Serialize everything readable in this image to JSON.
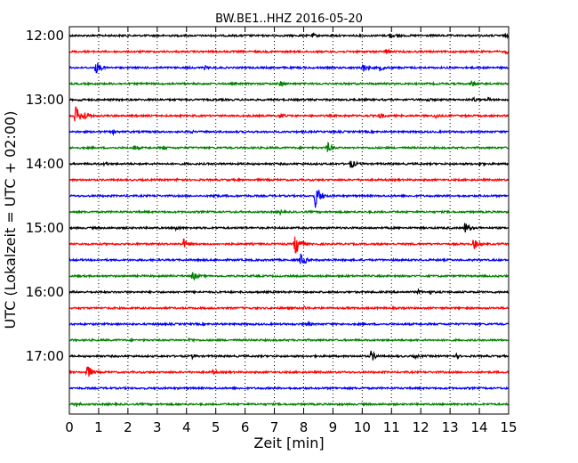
{
  "chart_data": {
    "type": "line",
    "title": "BW.BE1..HHZ 2016-05-20",
    "xlabel": "Zeit  [min]",
    "ylabel": "UTC (Lokalzeit = UTC + 02:00)",
    "xlim": [
      0,
      15
    ],
    "x_ticks": [
      "0",
      "1",
      "2",
      "3",
      "4",
      "5",
      "6",
      "7",
      "8",
      "9",
      "10",
      "11",
      "12",
      "13",
      "14",
      "15"
    ],
    "y_tick_labels": [
      "12:00",
      "13:00",
      "14:00",
      "15:00",
      "16:00",
      "17:00"
    ],
    "grid": "vertical dotted",
    "trace_interval_min": 15,
    "trace_colors": [
      "#000000",
      "#ff0000",
      "#0000ff",
      "#008000"
    ],
    "traces": [
      {
        "start": "12:00",
        "events": [
          [
            8.3,
            3
          ],
          [
            10.9,
            4
          ],
          [
            11.2,
            3
          ],
          [
            14.9,
            3
          ]
        ]
      },
      {
        "start": "12:15",
        "events": [
          [
            10.8,
            4
          ],
          [
            14.9,
            3
          ]
        ]
      },
      {
        "start": "12:30",
        "events": [
          [
            0.9,
            8
          ],
          [
            4.6,
            3
          ],
          [
            10.0,
            6
          ],
          [
            10.6,
            4
          ]
        ]
      },
      {
        "start": "12:45",
        "events": [
          [
            7.2,
            4
          ],
          [
            13.7,
            5
          ]
        ]
      },
      {
        "start": "13:00",
        "events": [
          [
            0.3,
            3
          ],
          [
            12.2,
            3
          ],
          [
            13.8,
            3
          ],
          [
            14.3,
            3
          ]
        ]
      },
      {
        "start": "13:15",
        "events": [
          [
            0.2,
            12
          ],
          [
            0.5,
            6
          ],
          [
            7.2,
            4
          ],
          [
            10.6,
            4
          ],
          [
            12.5,
            4
          ]
        ]
      },
      {
        "start": "13:30",
        "events": [
          [
            1.5,
            3
          ],
          [
            4.1,
            3
          ]
        ]
      },
      {
        "start": "13:45",
        "events": [
          [
            2.2,
            4
          ],
          [
            3.2,
            3
          ],
          [
            8.8,
            7
          ]
        ]
      },
      {
        "start": "14:00",
        "events": [
          [
            1.2,
            3
          ],
          [
            9.6,
            6
          ],
          [
            14.0,
            3
          ]
        ]
      },
      {
        "start": "14:15",
        "events": [
          [
            3.7,
            3
          ]
        ]
      },
      {
        "start": "14:30",
        "events": [
          [
            8.4,
            14
          ],
          [
            4.9,
            3
          ]
        ]
      },
      {
        "start": "14:45",
        "events": [
          [
            7.2,
            3
          ]
        ]
      },
      {
        "start": "15:00",
        "events": [
          [
            3.6,
            4
          ],
          [
            13.5,
            7
          ]
        ]
      },
      {
        "start": "15:15",
        "events": [
          [
            3.9,
            6
          ],
          [
            7.7,
            14
          ],
          [
            13.8,
            7
          ]
        ]
      },
      {
        "start": "15:30",
        "events": [
          [
            7.9,
            8
          ]
        ]
      },
      {
        "start": "15:45",
        "events": [
          [
            4.2,
            6
          ]
        ]
      },
      {
        "start": "16:00",
        "events": [
          [
            11.9,
            3
          ],
          [
            12.3,
            3
          ]
        ]
      },
      {
        "start": "16:15",
        "events": [
          [
            8.0,
            3
          ]
        ]
      },
      {
        "start": "16:30",
        "events": [
          [
            8.1,
            4
          ]
        ]
      },
      {
        "start": "16:45",
        "events": [
          [
            4.1,
            3
          ]
        ]
      },
      {
        "start": "17:00",
        "events": [
          [
            4.2,
            3
          ],
          [
            10.3,
            7
          ],
          [
            11.8,
            3
          ],
          [
            13.2,
            3
          ]
        ]
      },
      {
        "start": "17:15",
        "events": [
          [
            0.6,
            9
          ],
          [
            4.9,
            3
          ]
        ]
      },
      {
        "start": "17:30",
        "events": []
      },
      {
        "start": "17:45",
        "events": [
          [
            0.2,
            4
          ]
        ]
      }
    ]
  }
}
